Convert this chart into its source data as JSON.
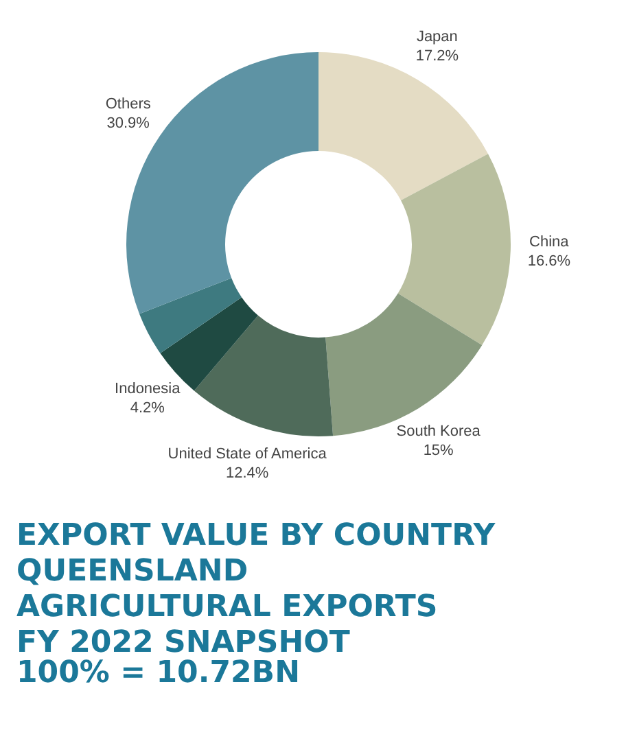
{
  "chart_data": {
    "type": "donut",
    "title": "EXPORT VALUE BY COUNTRY\nQUEENSLAND\nAGRICULTURAL EXPORTS\nFY 2022 SNAPSHOT",
    "subtitle": "100% = 10.72BN",
    "categories": [
      "Japan",
      "China",
      "South Korea",
      "United State of America",
      "Indonesia",
      null,
      "Others"
    ],
    "values": [
      17.2,
      16.6,
      15,
      12.4,
      4.2,
      3.7,
      30.9
    ],
    "value_labels": [
      "17.2%",
      "16.6%",
      "15%",
      "12.4%",
      "4.2%",
      null,
      "30.9%"
    ],
    "colors": [
      "#e4dcc4",
      "#b9bf9f",
      "#8a9c80",
      "#4f6b5a",
      "#1f4a42",
      "#3e7a80",
      "#5e93a4"
    ],
    "legend": false
  }
}
